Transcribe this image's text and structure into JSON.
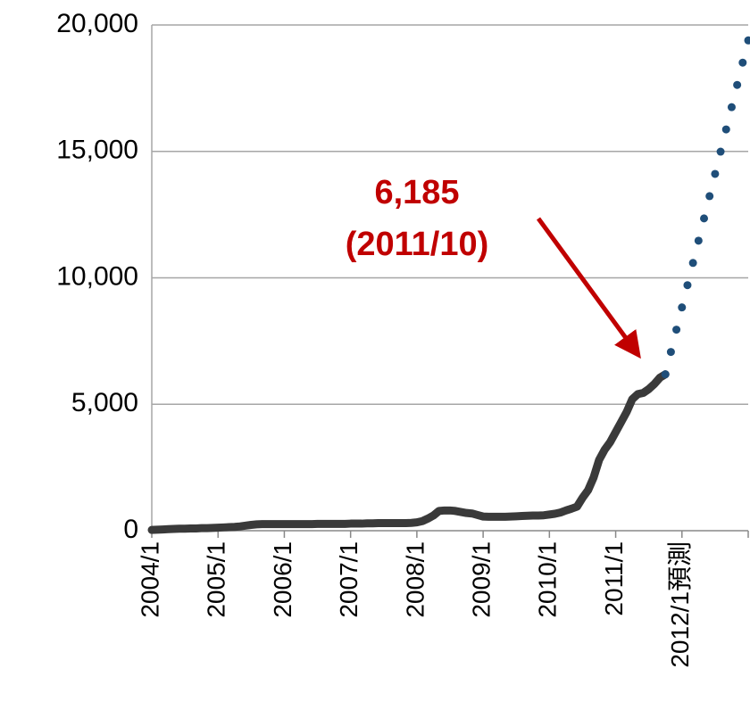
{
  "chart_data": {
    "type": "line",
    "categories": [
      "2004/1",
      null,
      null,
      null,
      null,
      null,
      null,
      null,
      null,
      null,
      null,
      null,
      "2005/1",
      null,
      null,
      null,
      null,
      null,
      null,
      null,
      null,
      null,
      null,
      null,
      "2006/1",
      null,
      null,
      null,
      null,
      null,
      null,
      null,
      null,
      null,
      null,
      null,
      "2007/1",
      null,
      null,
      null,
      null,
      null,
      null,
      null,
      null,
      null,
      null,
      null,
      "2008/1",
      null,
      null,
      null,
      null,
      null,
      null,
      null,
      null,
      null,
      null,
      null,
      "2009/1",
      null,
      null,
      null,
      null,
      null,
      null,
      null,
      null,
      null,
      null,
      null,
      "2010/1",
      null,
      null,
      null,
      null,
      null,
      null,
      null,
      null,
      null,
      null,
      null,
      "2011/1",
      null,
      null,
      null,
      null,
      null,
      null,
      null,
      null,
      null,
      null,
      null,
      "2012/1預測",
      null,
      null,
      null,
      null,
      null,
      null,
      null,
      null,
      null,
      null,
      null,
      null
    ],
    "series": [
      {
        "color": "#3a3a3a",
        "style": "solid",
        "values": [
          30,
          40,
          50,
          60,
          70,
          80,
          80,
          90,
          90,
          100,
          100,
          110,
          120,
          130,
          140,
          150,
          170,
          200,
          230,
          250,
          260,
          260,
          260,
          260,
          260,
          260,
          260,
          260,
          260,
          260,
          270,
          270,
          270,
          270,
          270,
          270,
          280,
          280,
          280,
          290,
          290,
          300,
          300,
          300,
          300,
          300,
          300,
          310,
          330,
          380,
          480,
          600,
          780,
          800,
          800,
          780,
          740,
          700,
          680,
          620,
          560,
          550,
          550,
          550,
          550,
          560,
          570,
          580,
          590,
          600,
          600,
          610,
          640,
          670,
          720,
          800,
          870,
          950,
          1300,
          1600,
          2100,
          2800,
          3200,
          3500,
          3900,
          4300,
          4700,
          5200,
          5400,
          5450,
          5600,
          5800,
          6050,
          6185,
          null,
          null,
          null,
          null,
          null,
          null,
          null,
          null,
          null,
          null,
          null,
          null,
          null,
          null,
          null
        ]
      },
      {
        "color": "#1f4e79",
        "style": "dotted",
        "values": [
          null,
          null,
          null,
          null,
          null,
          null,
          null,
          null,
          null,
          null,
          null,
          null,
          null,
          null,
          null,
          null,
          null,
          null,
          null,
          null,
          null,
          null,
          null,
          null,
          null,
          null,
          null,
          null,
          null,
          null,
          null,
          null,
          null,
          null,
          null,
          null,
          null,
          null,
          null,
          null,
          null,
          null,
          null,
          null,
          null,
          null,
          null,
          null,
          null,
          null,
          null,
          null,
          null,
          null,
          null,
          null,
          null,
          null,
          null,
          null,
          null,
          null,
          null,
          null,
          null,
          null,
          null,
          null,
          null,
          null,
          null,
          null,
          null,
          null,
          null,
          null,
          null,
          null,
          null,
          null,
          null,
          null,
          null,
          null,
          null,
          null,
          null,
          null,
          null,
          null,
          null,
          null,
          null,
          6185,
          7070,
          7950,
          8830,
          9710,
          10590,
          11470,
          12350,
          13230,
          14110,
          14990,
          15870,
          16750,
          17630,
          18510,
          19390
        ]
      }
    ],
    "ylim": [
      0,
      20000
    ],
    "yticks": [
      0,
      {
        "value": 5000,
        "label": "5,000"
      },
      {
        "value": 10000,
        "label": "10,000"
      },
      {
        "value": 15000,
        "label": "15,000"
      },
      {
        "value": 20000,
        "label": "20,000"
      }
    ],
    "grid": true,
    "annotation": {
      "lines": [
        "6,185",
        "(2011/10)"
      ],
      "color": "#c00000"
    }
  }
}
